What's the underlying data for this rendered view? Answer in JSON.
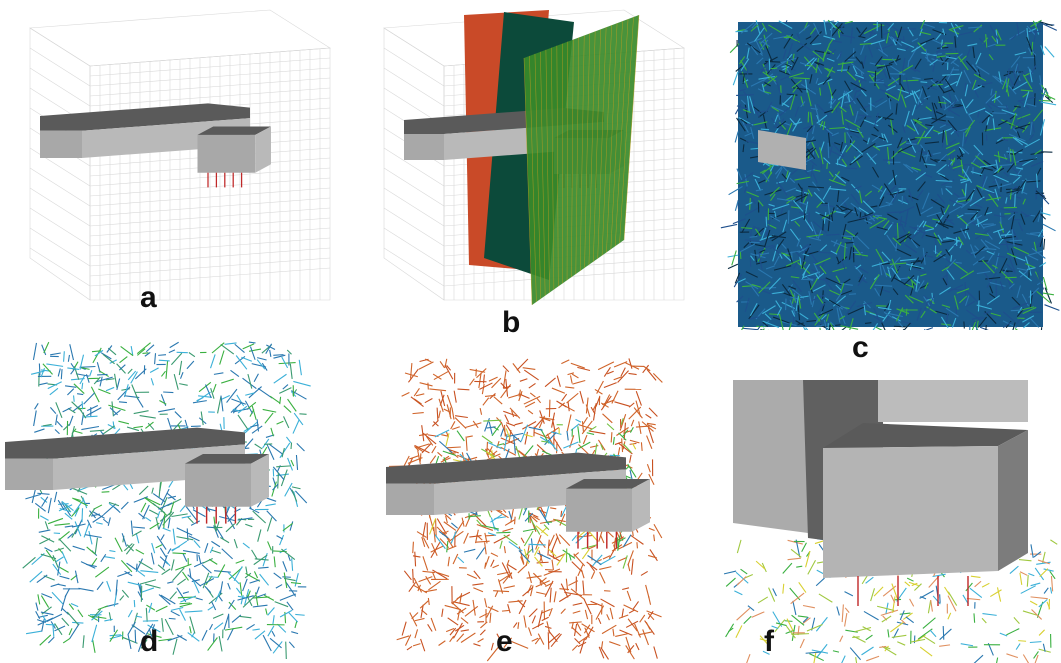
{
  "figure": {
    "panels": [
      {
        "id": "a",
        "label": "a"
      },
      {
        "id": "b",
        "label": "b"
      },
      {
        "id": "c",
        "label": "c"
      },
      {
        "id": "d",
        "label": "d"
      },
      {
        "id": "e",
        "label": "e"
      },
      {
        "id": "f",
        "label": "f"
      }
    ]
  },
  "colors": {
    "structure_top": "#5a5a5a",
    "structure_side": "#b9b9b9",
    "structure_front": "#a8a8a8",
    "plane_red": "#c94a28",
    "plane_teal": "#0c4a3a",
    "plane_green": "#3a8a2a",
    "grid_line": "#c8c8c8",
    "frac_blue": "#2a78b0",
    "frac_cyan": "#3bb0d8",
    "frac_green": "#3ab040",
    "frac_orange": "#d0642a",
    "frac_yellow": "#d8d030",
    "bolt_red": "#c02828"
  }
}
